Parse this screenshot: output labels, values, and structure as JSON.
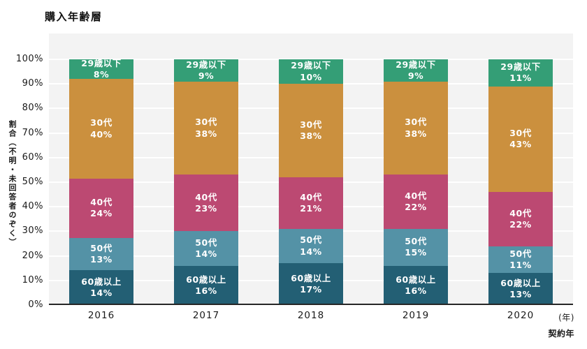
{
  "title": "購入年齢層",
  "y_axis": {
    "label": "割合（不明・未回答者のぞく）",
    "tick_values": [
      0,
      10,
      20,
      30,
      40,
      50,
      60,
      70,
      80,
      90,
      100
    ],
    "tick_suffix": "%"
  },
  "x_axis": {
    "unit_label": "(年)",
    "axis_title": "契約年"
  },
  "chart_data": {
    "type": "bar",
    "stacked": true,
    "normalized_to_100": true,
    "categories": [
      "2016",
      "2017",
      "2018",
      "2019",
      "2020"
    ],
    "series": [
      {
        "name": "60歳以上",
        "color": "#235f74",
        "values": [
          14,
          16,
          17,
          16,
          13
        ]
      },
      {
        "name": "50代",
        "color": "#5492a6",
        "values": [
          13,
          14,
          14,
          15,
          11
        ]
      },
      {
        "name": "40代",
        "color": "#bc4972",
        "values": [
          24,
          23,
          21,
          22,
          22
        ]
      },
      {
        "name": "30代",
        "color": "#cb903e",
        "values": [
          40,
          38,
          38,
          38,
          43
        ]
      },
      {
        "name": "29歳以下",
        "color": "#349e76",
        "values": [
          8,
          9,
          10,
          9,
          11
        ]
      }
    ],
    "value_suffix": "%",
    "title": "購入年齢層",
    "xlabel": "契約年",
    "ylabel": "割合（不明・未回答者のぞく）",
    "ylim": [
      0,
      110
    ],
    "grid": true,
    "legend": "none (labels inside segments)",
    "plot_background": "#f3f3f3",
    "gridline_color": "#ffffff",
    "axis_line_color": "#262626"
  }
}
